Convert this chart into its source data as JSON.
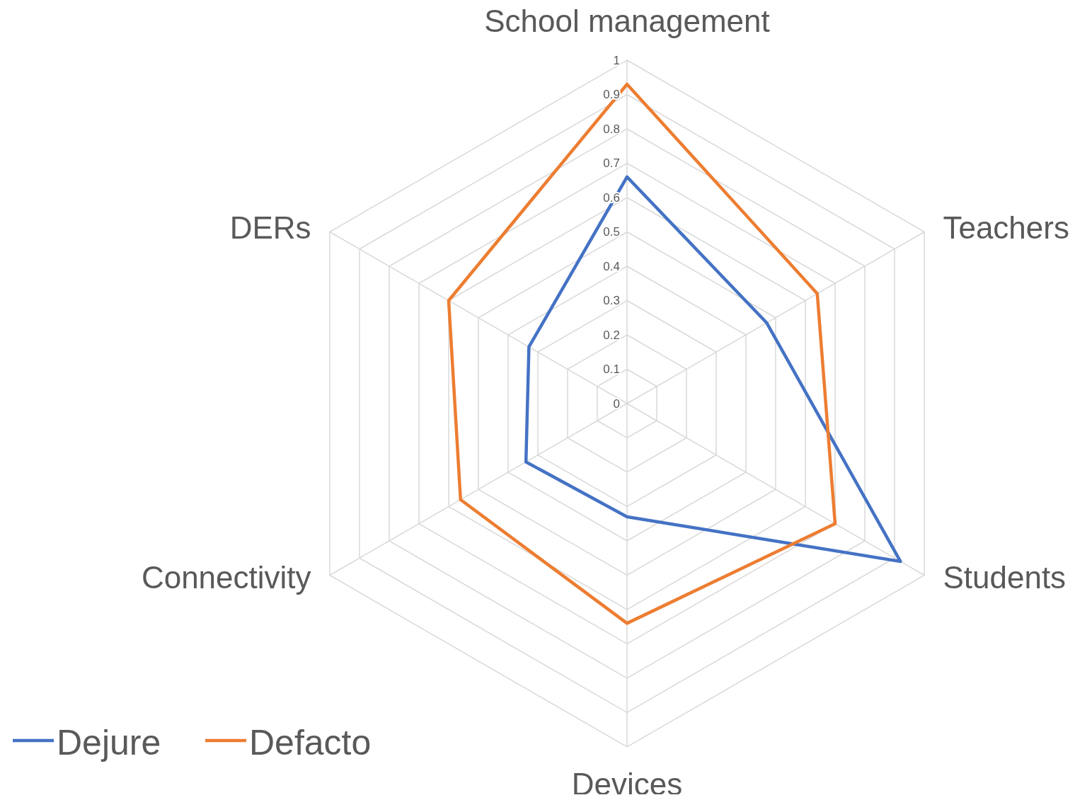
{
  "chart_data": {
    "type": "radar",
    "categories": [
      "School management",
      "Teachers",
      "Students",
      "Devices",
      "Connectivity",
      "DERs"
    ],
    "series": [
      {
        "name": "Dejure",
        "color": "#4472c4",
        "values": [
          0.66,
          0.47,
          0.92,
          0.33,
          0.34,
          0.33
        ]
      },
      {
        "name": "Defacto",
        "color": "#ed7d31",
        "values": [
          0.93,
          0.64,
          0.7,
          0.64,
          0.56,
          0.6
        ]
      }
    ],
    "ylim": [
      0,
      1
    ],
    "yticks": [
      0,
      0.1,
      0.2,
      0.3,
      0.4,
      0.5,
      0.6,
      0.7,
      0.8,
      0.9,
      1
    ],
    "grid": true,
    "legend": "bottom left"
  }
}
